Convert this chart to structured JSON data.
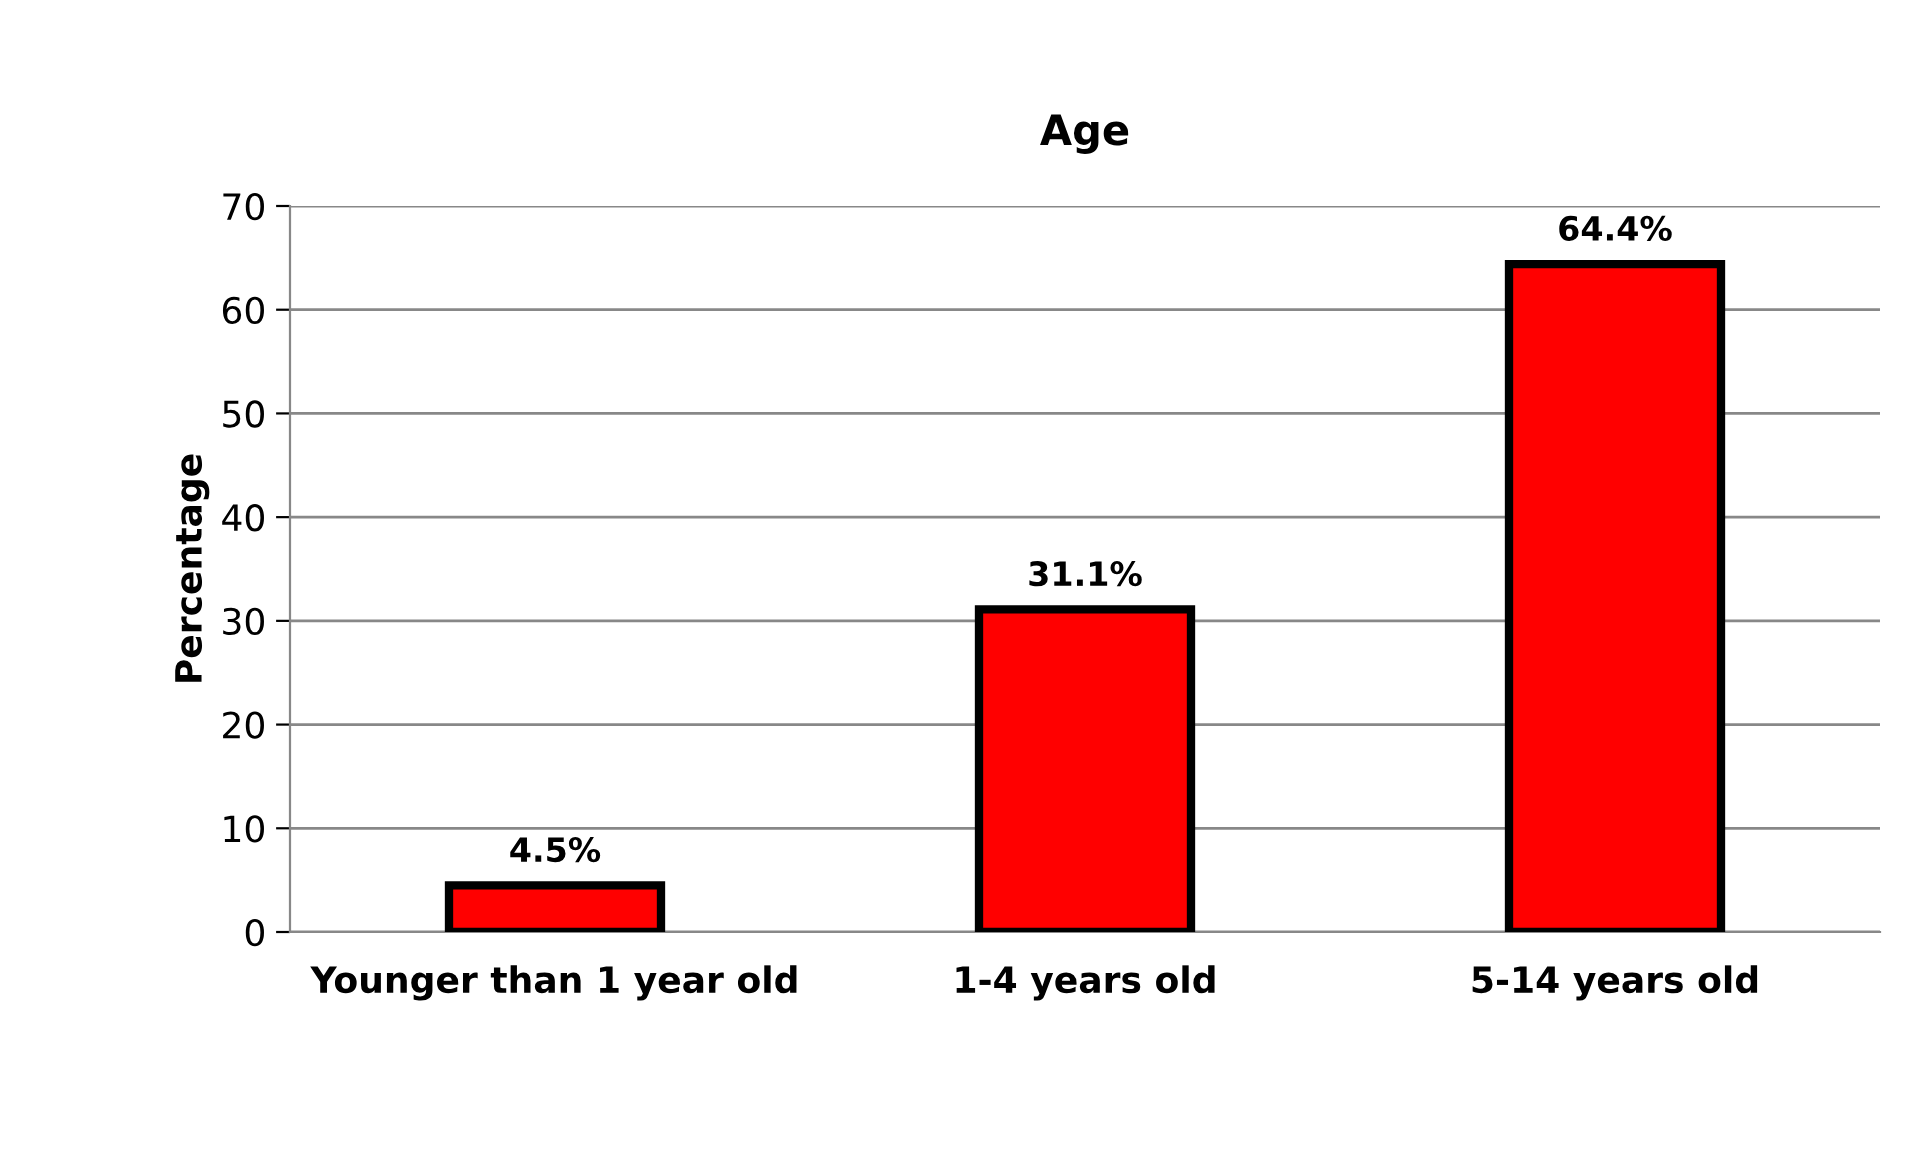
{
  "chart_data": {
    "type": "bar",
    "title": "Age",
    "ylabel": "Percentage",
    "categories": [
      "Younger than 1 year old",
      "1-4 years old",
      "5-14 years old"
    ],
    "values": [
      4.5,
      31.1,
      64.4
    ],
    "value_labels": [
      "4.5%",
      "31.1%",
      "64.4%"
    ],
    "color": "#ff0000",
    "ylim": [
      0,
      70
    ],
    "yticks": [
      0,
      10,
      20,
      30,
      40,
      50,
      60,
      70
    ],
    "grid": "y",
    "legend": false
  }
}
